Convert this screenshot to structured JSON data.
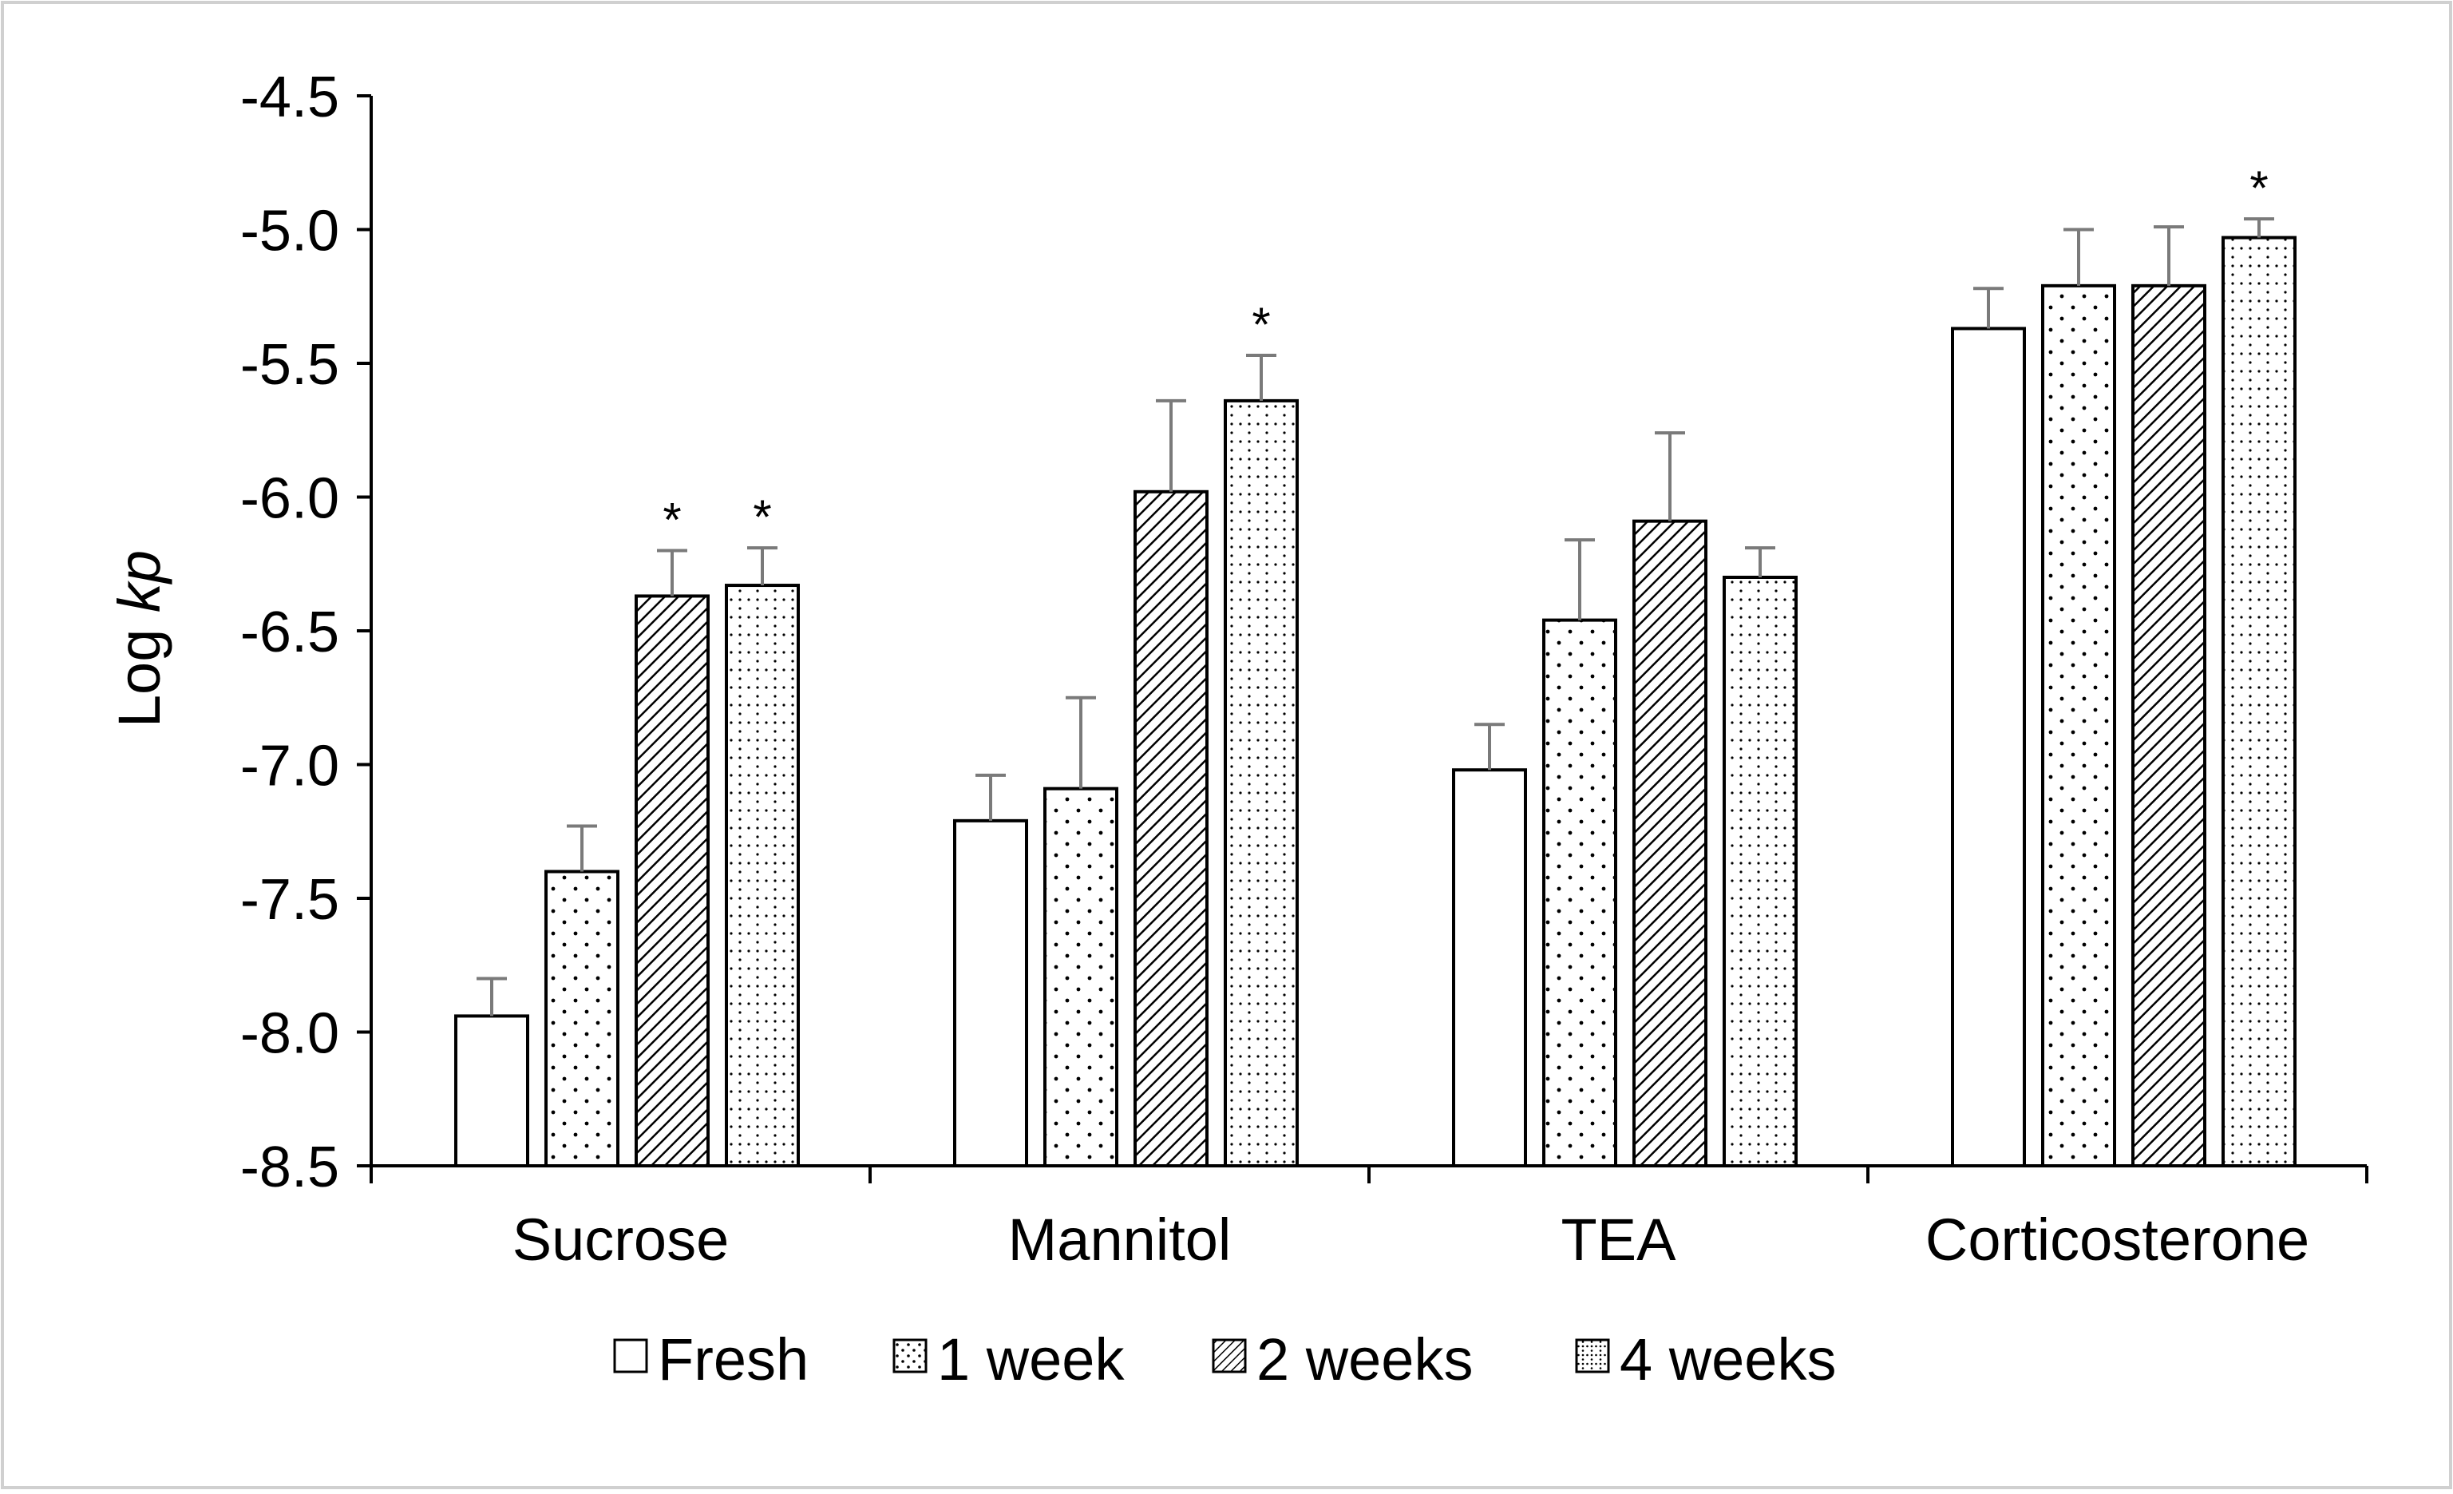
{
  "chart_data": {
    "type": "bar",
    "title": "",
    "xlabel": "",
    "ylabel_prefix": "Log ",
    "ylabel_italic": "kp",
    "categories": [
      "Sucrose",
      "Mannitol",
      "TEA",
      "Corticosterone"
    ],
    "ylim": [
      -8.5,
      -4.5
    ],
    "yticks": [
      -4.5,
      -5.0,
      -5.5,
      -6.0,
      -6.5,
      -7.0,
      -7.5,
      -8.0,
      -8.5
    ],
    "ytick_labels": [
      "-4.5",
      "-5.0",
      "-5.5",
      "-6.0",
      "-6.5",
      "-7.0",
      "-7.5",
      "-8.0",
      "-8.5"
    ],
    "grid": false,
    "legend_position": "bottom",
    "significance_marker": "*",
    "series": [
      {
        "name": "Fresh",
        "pattern": "plain",
        "values": [
          -7.94,
          -7.21,
          -7.02,
          -5.37
        ],
        "errors": [
          0.14,
          0.17,
          0.17,
          0.15
        ],
        "significant": [
          false,
          false,
          false,
          false
        ]
      },
      {
        "name": "1 week",
        "pattern": "dots",
        "values": [
          -7.4,
          -7.09,
          -6.46,
          -5.21
        ],
        "errors": [
          0.17,
          0.34,
          0.3,
          0.21
        ],
        "significant": [
          false,
          false,
          false,
          false
        ]
      },
      {
        "name": "2 weeks",
        "pattern": "diagonal",
        "values": [
          -6.37,
          -5.98,
          -6.09,
          -5.21
        ],
        "errors": [
          0.17,
          0.34,
          0.33,
          0.22
        ],
        "significant": [
          true,
          false,
          false,
          false
        ]
      },
      {
        "name": "4 weeks",
        "pattern": "grid",
        "values": [
          -6.33,
          -5.64,
          -6.3,
          -5.03
        ],
        "errors": [
          0.14,
          0.17,
          0.11,
          0.07
        ],
        "significant": [
          true,
          true,
          false,
          true
        ]
      }
    ]
  }
}
